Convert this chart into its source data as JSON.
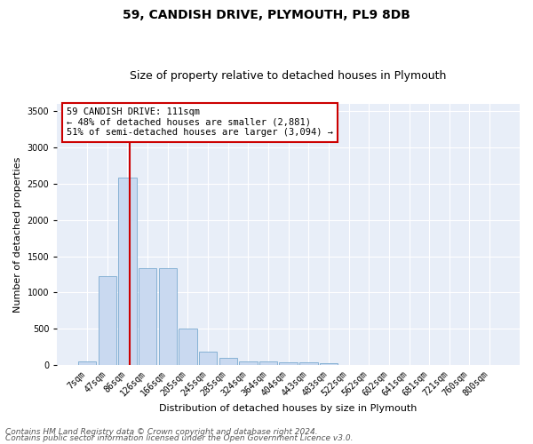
{
  "title": "59, CANDISH DRIVE, PLYMOUTH, PL9 8DB",
  "subtitle": "Size of property relative to detached houses in Plymouth",
  "xlabel": "Distribution of detached houses by size in Plymouth",
  "ylabel": "Number of detached properties",
  "categories": [
    "7sqm",
    "47sqm",
    "86sqm",
    "126sqm",
    "166sqm",
    "205sqm",
    "245sqm",
    "285sqm",
    "324sqm",
    "364sqm",
    "404sqm",
    "443sqm",
    "483sqm",
    "522sqm",
    "562sqm",
    "602sqm",
    "641sqm",
    "681sqm",
    "721sqm",
    "760sqm",
    "800sqm"
  ],
  "values": [
    50,
    1220,
    2580,
    1340,
    1340,
    500,
    190,
    100,
    50,
    50,
    40,
    40,
    30,
    5,
    2,
    2,
    2,
    2,
    2,
    2,
    2
  ],
  "bar_color": "#c9d9f0",
  "bar_edge_color": "#7aaad0",
  "vline_color": "#cc0000",
  "vline_bar_index": 2,
  "ylim": [
    0,
    3600
  ],
  "yticks": [
    0,
    500,
    1000,
    1500,
    2000,
    2500,
    3000,
    3500
  ],
  "annotation_box_text": "59 CANDISH DRIVE: 111sqm\n← 48% of detached houses are smaller (2,881)\n51% of semi-detached houses are larger (3,094) →",
  "footer_line1": "Contains HM Land Registry data © Crown copyright and database right 2024.",
  "footer_line2": "Contains public sector information licensed under the Open Government Licence v3.0.",
  "fig_background_color": "#ffffff",
  "ax_background_color": "#e8eef8",
  "grid_color": "#ffffff",
  "title_fontsize": 10,
  "subtitle_fontsize": 9,
  "axis_label_fontsize": 8,
  "tick_fontsize": 7,
  "annotation_fontsize": 7.5,
  "footer_fontsize": 6.5
}
